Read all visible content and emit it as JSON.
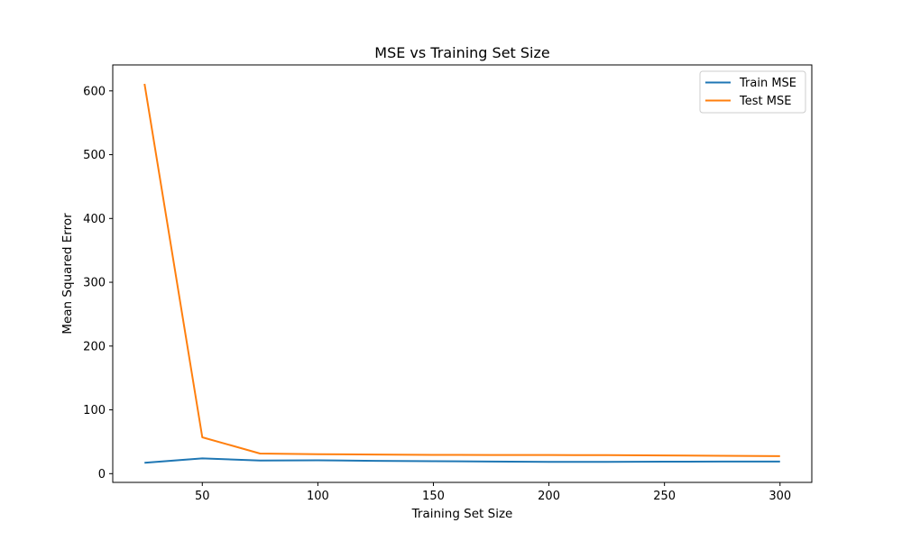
{
  "chart_data": {
    "type": "line",
    "title": "MSE vs Training Set Size",
    "xlabel": "Training Set Size",
    "ylabel": "Mean Squared Error",
    "x": [
      25,
      50,
      75,
      100,
      125,
      150,
      175,
      200,
      225,
      250,
      275,
      300
    ],
    "series": [
      {
        "name": "Train MSE",
        "color": "#1f77b4",
        "values": [
          17,
          24,
          20.5,
          21,
          20,
          19.5,
          19,
          18.5,
          18.5,
          18.8,
          19,
          19
        ]
      },
      {
        "name": "Test MSE",
        "color": "#ff7f0e",
        "values": [
          611,
          57,
          31.5,
          30.5,
          30,
          29.5,
          29.3,
          29.2,
          29,
          28.5,
          28,
          27.5
        ]
      }
    ],
    "xlim": [
      11.25,
      313.75
    ],
    "ylim": [
      -13.7,
      640.7
    ],
    "xticks": [
      50,
      100,
      150,
      200,
      250,
      300
    ],
    "yticks": [
      0,
      100,
      200,
      300,
      400,
      500,
      600
    ],
    "legend": "top-right",
    "grid": false
  }
}
